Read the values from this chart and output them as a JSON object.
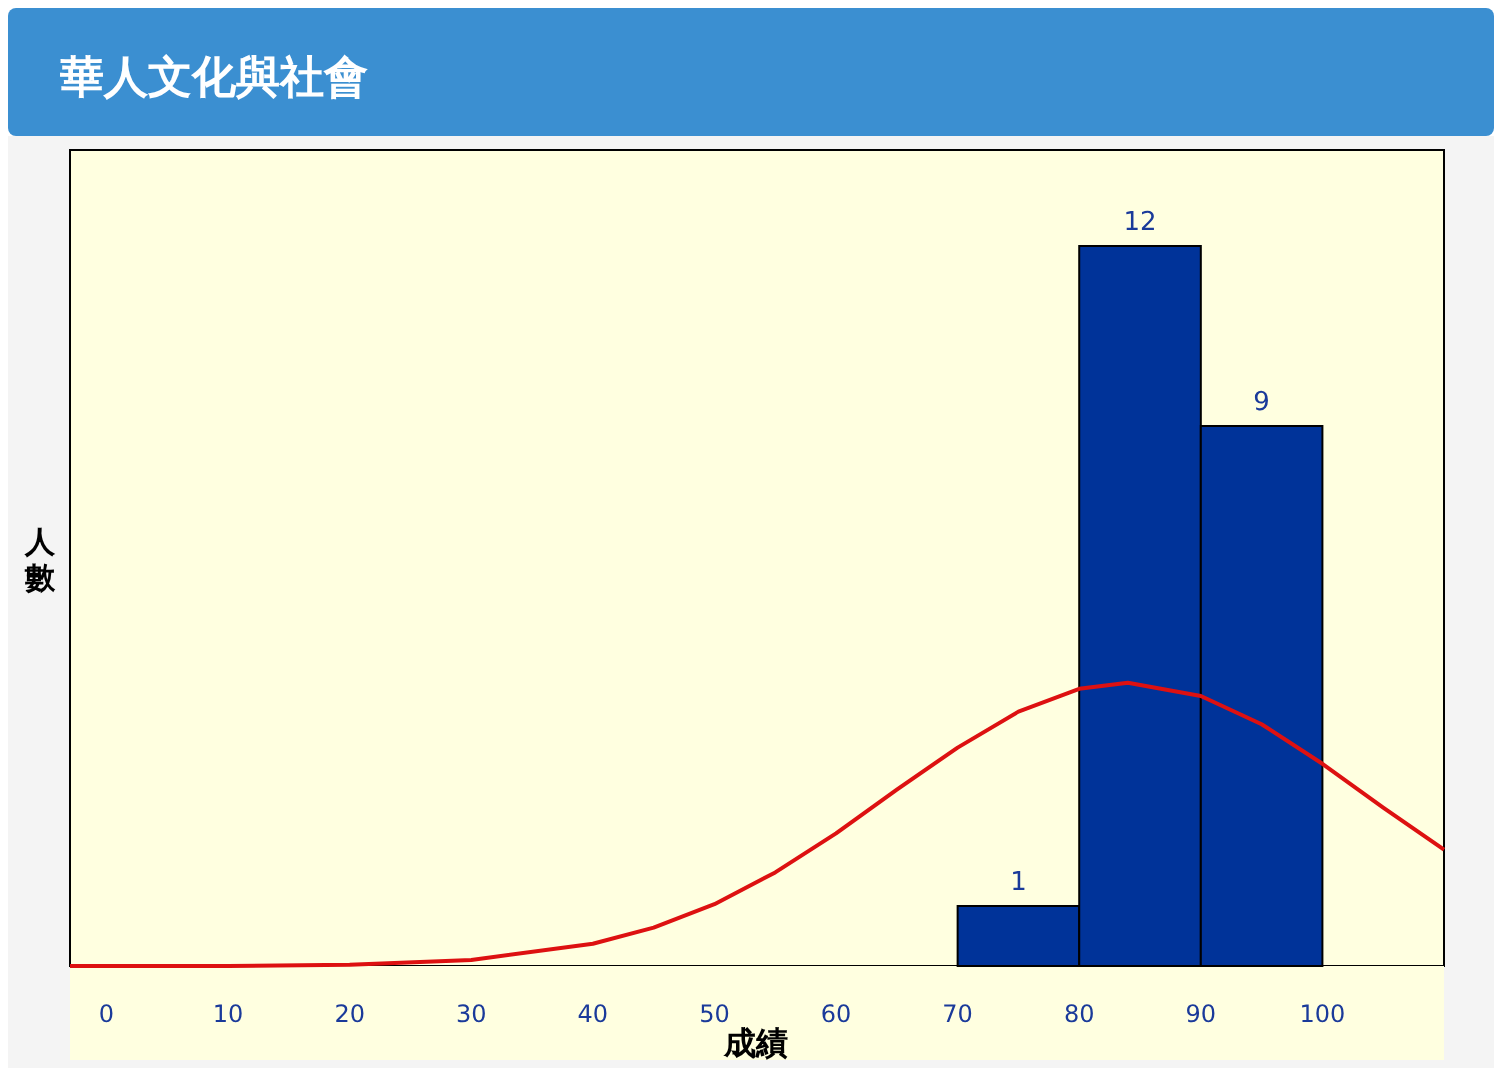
{
  "chart_data": {
    "type": "histogram",
    "title": "華人文化與社會",
    "xlabel": "成績",
    "ylabel": "人數",
    "bins": [
      70,
      80,
      90,
      100
    ],
    "values": [
      1,
      12,
      9
    ],
    "color": "#003399",
    "value_labels": [
      "1",
      "12",
      "9"
    ],
    "xlim": [
      -3,
      110
    ],
    "xticks": [
      0,
      10,
      20,
      30,
      40,
      50,
      60,
      70,
      80,
      90,
      100
    ],
    "ylim": [
      0,
      13.6
    ],
    "tick_labels": "x",
    "grid": false,
    "series": [
      {
        "type": "line",
        "color": "#dd1111",
        "x": [
          -3,
          0,
          10,
          20,
          30,
          40,
          45,
          50,
          55,
          60,
          65,
          70,
          75,
          80,
          84,
          90,
          95,
          100,
          105,
          110
        ],
        "values": [
          0,
          0,
          0,
          0.02,
          0.1,
          0.37,
          0.64,
          1.03,
          1.56,
          2.21,
          2.94,
          3.64,
          4.24,
          4.62,
          4.72,
          4.5,
          4.03,
          3.37,
          2.64,
          1.94
        ]
      }
    ]
  }
}
